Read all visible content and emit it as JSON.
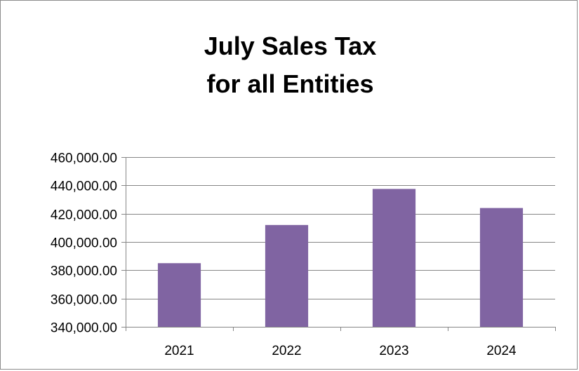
{
  "chart_data": {
    "type": "bar",
    "title_lines": [
      "July Sales Tax",
      "for all Entities"
    ],
    "categories": [
      "2021",
      "2022",
      "2023",
      "2024"
    ],
    "values": [
      385000,
      412000,
      437500,
      424000
    ],
    "ylim": [
      340000,
      460000
    ],
    "yticks": [
      340000,
      360000,
      380000,
      400000,
      420000,
      440000,
      460000
    ],
    "ytick_labels": [
      "340,000.00",
      "360,000.00",
      "380,000.00",
      "400,000.00",
      "420,000.00",
      "440,000.00",
      "460,000.00"
    ],
    "grid": true,
    "legend": "none",
    "bar_color": "#8064A2"
  }
}
